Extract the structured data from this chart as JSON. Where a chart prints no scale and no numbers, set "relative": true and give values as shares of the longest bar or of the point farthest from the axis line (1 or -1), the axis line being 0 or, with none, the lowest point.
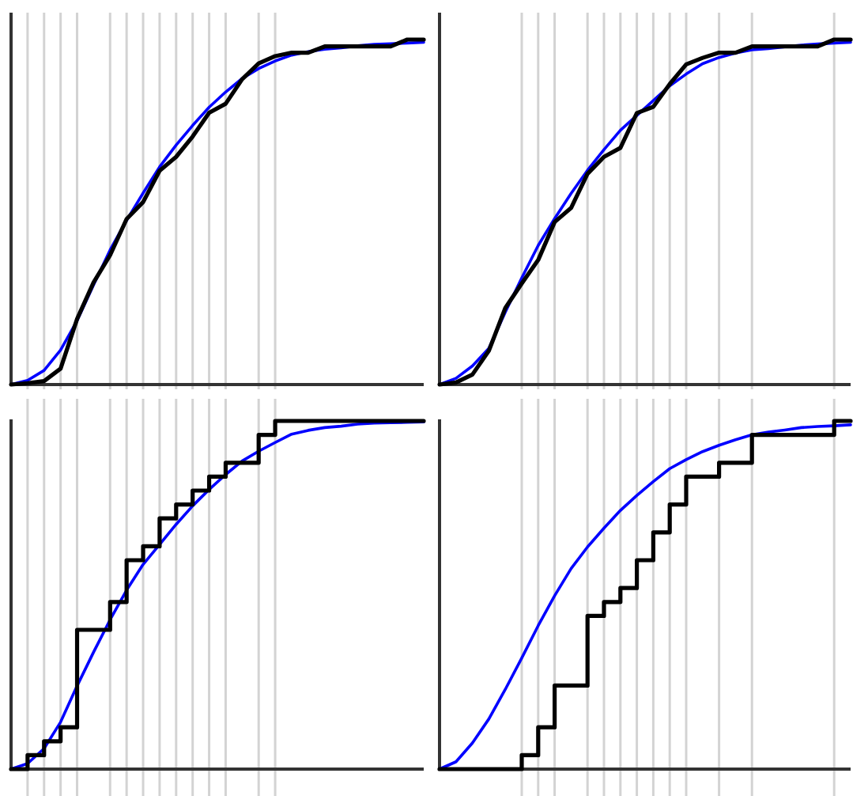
{
  "chart_data": [
    {
      "type": "line",
      "relative": true,
      "grid": "x",
      "categories": [
        null,
        null,
        null,
        null,
        null,
        null,
        null,
        null,
        null,
        null,
        null,
        null,
        null,
        null,
        null,
        null,
        null,
        null,
        null,
        null,
        null,
        null,
        null,
        null,
        null,
        null
      ],
      "series": [
        {
          "type": "line",
          "color": "#0000ff",
          "values": [
            0,
            0.012,
            0.041,
            0.1,
            0.185,
            0.289,
            0.39,
            0.476,
            0.555,
            0.631,
            0.694,
            0.751,
            0.804,
            0.848,
            0.887,
            0.916,
            0.938,
            0.955,
            0.965,
            0.972,
            0.976,
            0.982,
            0.986,
            0.988,
            0.99,
            0.992
          ]
        },
        {
          "type": "line",
          "color": "#000000",
          "values": [
            0,
            0.004,
            0.01,
            0.046,
            0.19,
            0.296,
            0.375,
            0.48,
            0.529,
            0.62,
            0.66,
            0.719,
            0.788,
            0.814,
            0.885,
            0.931,
            0.952,
            0.962,
            0.962,
            0.98,
            0.98,
            0.98,
            0.98,
            0.98,
            1,
            1
          ]
        }
      ]
    },
    {
      "type": "line",
      "relative": true,
      "grid": "x",
      "categories": [
        null,
        null,
        null,
        null,
        null,
        null,
        null,
        null,
        null,
        null,
        null,
        null,
        null,
        null,
        null,
        null,
        null,
        null,
        null,
        null,
        null,
        null,
        null,
        null,
        null,
        null
      ],
      "series": [
        {
          "type": "line",
          "color": "#0000ff",
          "values": [
            0,
            0.018,
            0.054,
            0.105,
            0.21,
            0.309,
            0.403,
            0.481,
            0.554,
            0.621,
            0.681,
            0.737,
            0.78,
            0.823,
            0.866,
            0.9,
            0.93,
            0.948,
            0.961,
            0.97,
            0.974,
            0.979,
            0.984,
            0.987,
            0.99,
            0.992
          ]
        },
        {
          "type": "line",
          "color": "#000000",
          "values": [
            0,
            0.006,
            0.029,
            0.098,
            0.222,
            0.293,
            0.361,
            0.471,
            0.512,
            0.611,
            0.66,
            0.686,
            0.787,
            0.805,
            0.871,
            0.928,
            0.947,
            0.962,
            0.962,
            0.98,
            0.98,
            0.98,
            0.98,
            0.98,
            1,
            1
          ]
        }
      ]
    },
    {
      "type": "line",
      "relative": true,
      "grid": "x",
      "categories": [
        null,
        null,
        null,
        null,
        null,
        null,
        null,
        null,
        null,
        null,
        null,
        null,
        null,
        null,
        null,
        null,
        null,
        null,
        null,
        null,
        null,
        null,
        null,
        null,
        null,
        null
      ],
      "series": [
        {
          "type": "line",
          "color": "#0000ff",
          "values": [
            0,
            0.016,
            0.059,
            0.135,
            0.239,
            0.336,
            0.429,
            0.514,
            0.588,
            0.645,
            0.703,
            0.756,
            0.803,
            0.846,
            0.885,
            0.913,
            0.938,
            0.962,
            0.973,
            0.981,
            0.985,
            0.991,
            0.994,
            0.995,
            0.996,
            0.997
          ]
        },
        {
          "type": "step",
          "color": "#000000",
          "values": [
            0,
            0.04,
            0.08,
            0.12,
            0.4,
            0.4,
            0.48,
            0.6,
            0.64,
            0.72,
            0.76,
            0.8,
            0.84,
            0.88,
            0.88,
            0.96,
            1,
            1,
            1,
            1,
            1,
            1,
            1,
            1,
            1,
            1
          ]
        }
      ]
    },
    {
      "type": "line",
      "relative": true,
      "grid": "x",
      "categories": [
        null,
        null,
        null,
        null,
        null,
        null,
        null,
        null,
        null,
        null,
        null,
        null,
        null,
        null,
        null,
        null,
        null,
        null,
        null,
        null,
        null,
        null,
        null,
        null,
        null,
        null
      ],
      "series": [
        {
          "type": "line",
          "color": "#0000ff",
          "values": [
            0,
            0.021,
            0.075,
            0.144,
            0.229,
            0.319,
            0.412,
            0.498,
            0.576,
            0.638,
            0.692,
            0.743,
            0.786,
            0.826,
            0.863,
            0.889,
            0.912,
            0.93,
            0.946,
            0.96,
            0.968,
            0.974,
            0.981,
            0.984,
            0.986,
            0.989
          ]
        },
        {
          "type": "step",
          "color": "#000000",
          "values": [
            0,
            0,
            0,
            0,
            0,
            0.04,
            0.12,
            0.24,
            0.24,
            0.44,
            0.48,
            0.52,
            0.6,
            0.68,
            0.76,
            0.84,
            0.84,
            0.88,
            0.88,
            0.96,
            0.96,
            0.96,
            0.96,
            0.96,
            1,
            1
          ]
        }
      ]
    }
  ]
}
